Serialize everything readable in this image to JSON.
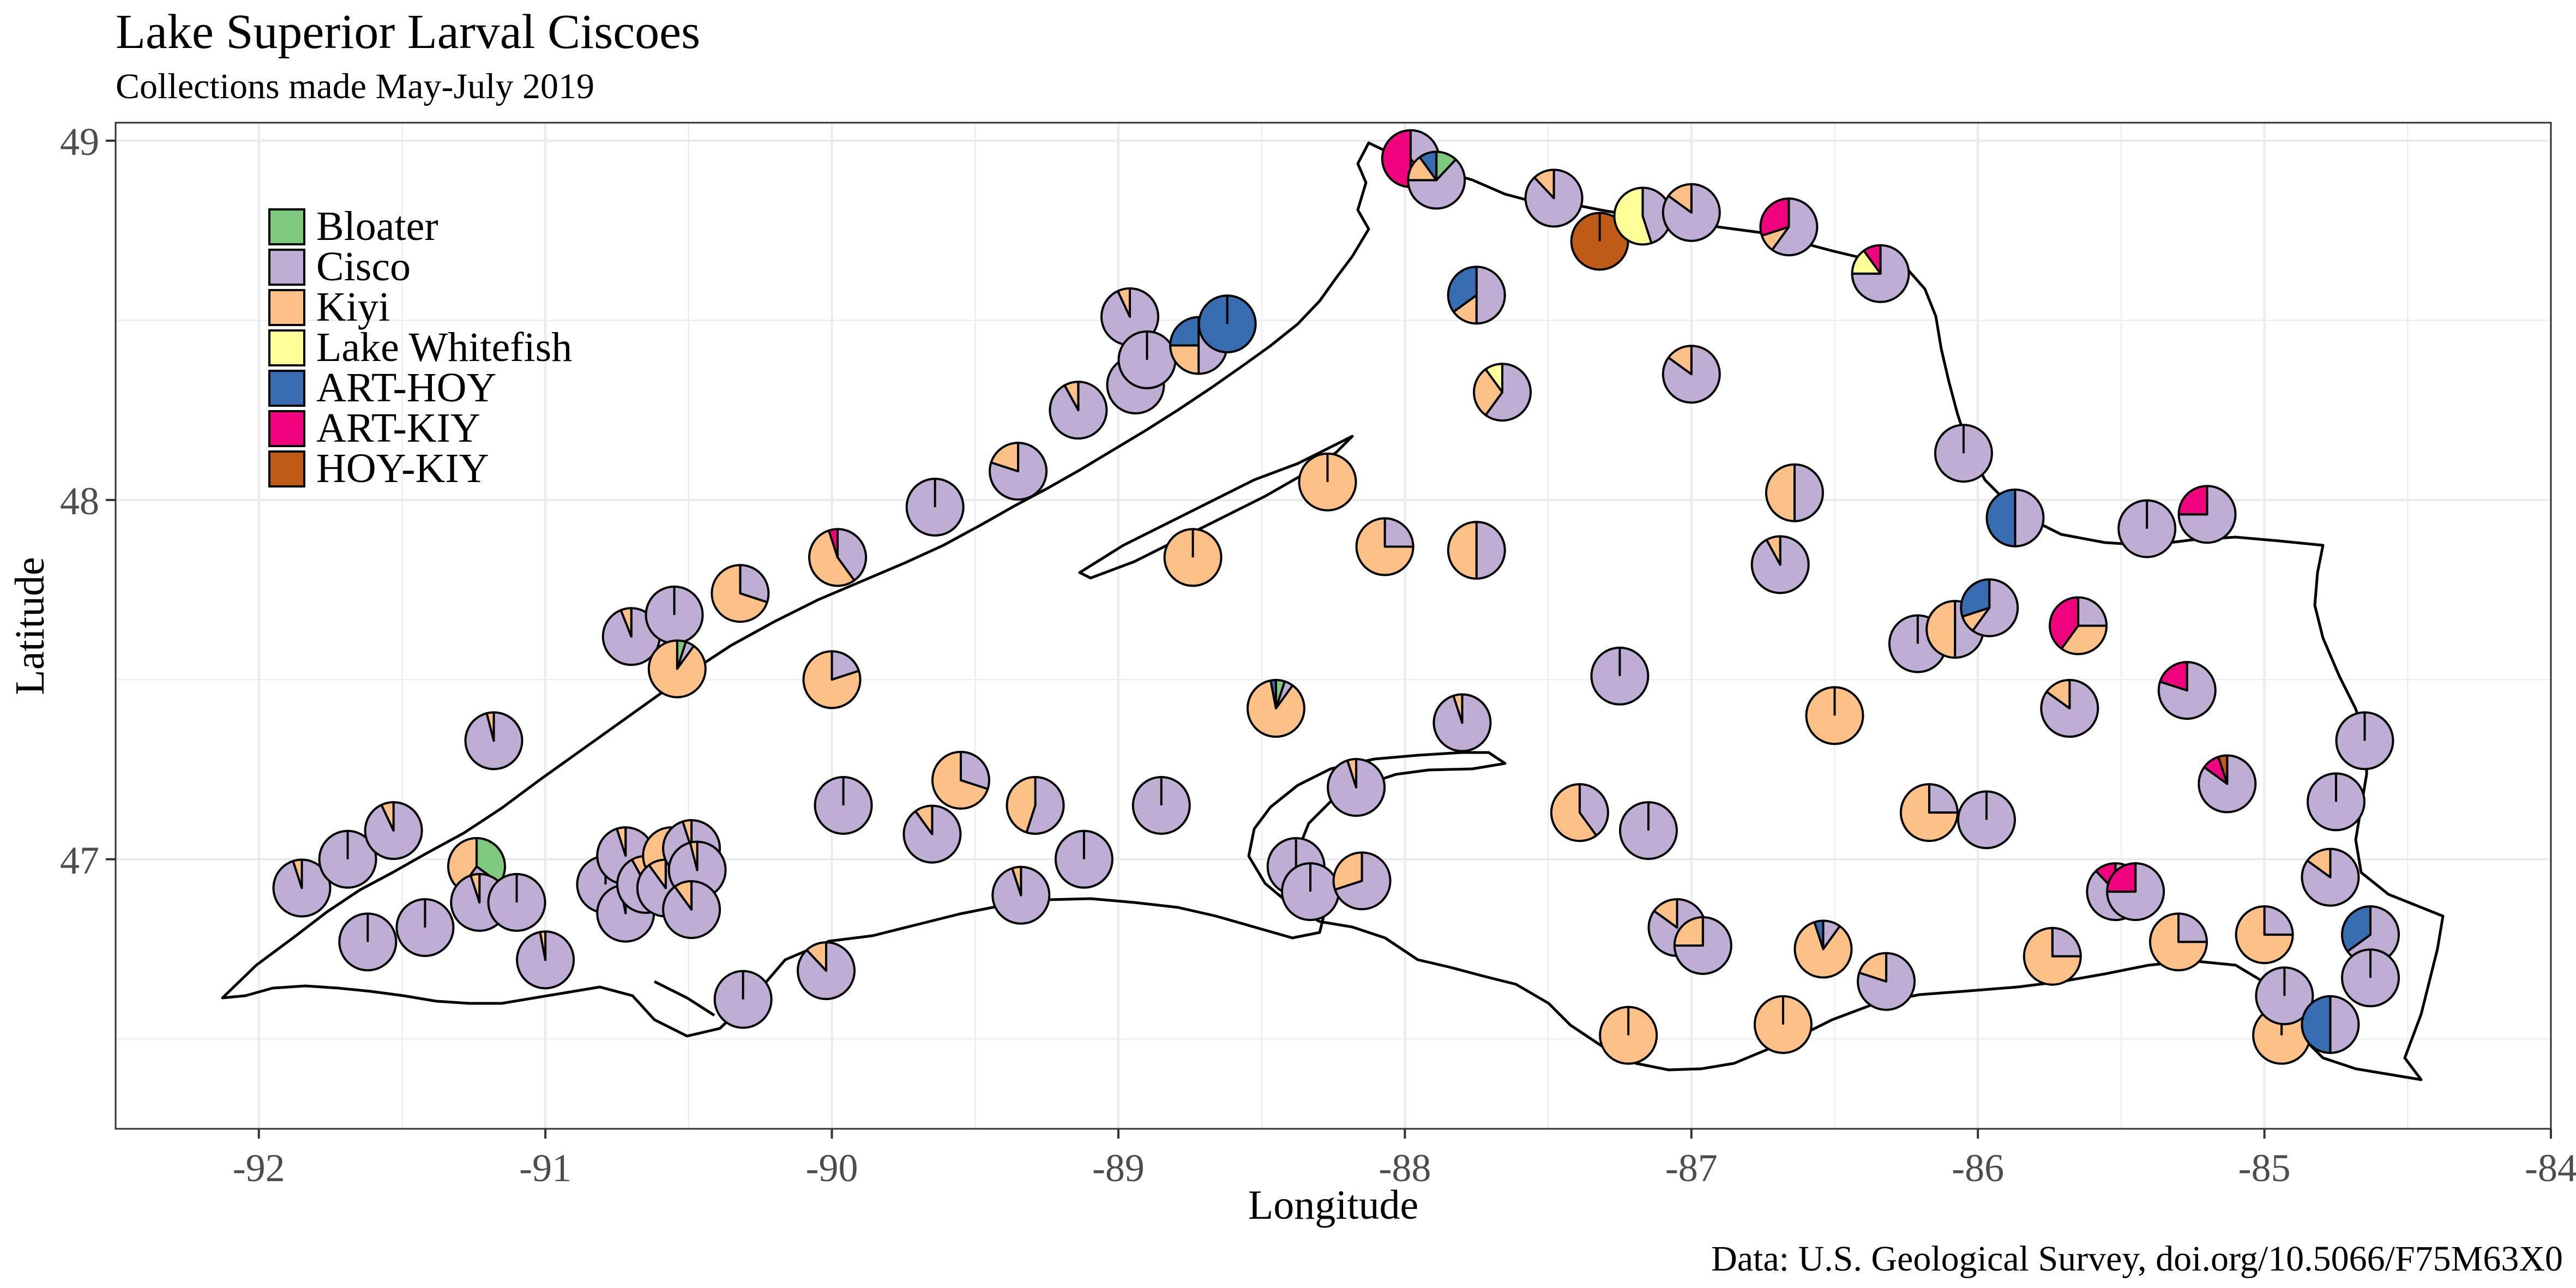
{
  "chart_data": {
    "type": "pie",
    "subtype": "scatter-pie map",
    "title": "Lake Superior Larval Ciscoes",
    "subtitle": "Collections made May-July 2019",
    "xlabel": "Longitude",
    "ylabel": "Latitude",
    "caption": "Data: U.S. Geological Survey, doi.org/10.5066/F75M63X0",
    "xlim": [
      -92.5,
      -84
    ],
    "ylim": [
      46.25,
      49.05
    ],
    "x_ticks": [
      -92,
      -91,
      -90,
      -89,
      -88,
      -87,
      -86,
      -85,
      -84
    ],
    "y_ticks": [
      47,
      48,
      49
    ],
    "grid": true,
    "legend_position": "top-left",
    "categories": [
      "Bloater",
      "Cisco",
      "Kiyi",
      "Lake Whitefish",
      "ART-HOY",
      "ART-KIY",
      "HOY-KIY"
    ],
    "colors": {
      "Bloater": "#7fc97f",
      "Cisco": "#beaed4",
      "Kiyi": "#fdc086",
      "Lake Whitefish": "#ffff99",
      "ART-HOY": "#386cb0",
      "ART-KIY": "#f0027f",
      "HOY-KIY": "#bf5b17"
    },
    "points": [
      {
        "lon": -91.0,
        "lat": 46.72,
        "values": {
          "Cisco": 0.97,
          "Kiyi": 0.03
        }
      },
      {
        "lon": -91.62,
        "lat": 46.77,
        "values": {
          "Cisco": 1.0
        }
      },
      {
        "lon": -91.42,
        "lat": 46.81,
        "values": {
          "Cisco": 1.0
        }
      },
      {
        "lon": -91.85,
        "lat": 46.92,
        "values": {
          "Cisco": 0.95,
          "Kiyi": 0.05
        }
      },
      {
        "lon": -91.69,
        "lat": 47.0,
        "values": {
          "Cisco": 1.0
        }
      },
      {
        "lon": -91.53,
        "lat": 47.08,
        "values": {
          "Cisco": 0.93,
          "Kiyi": 0.07
        }
      },
      {
        "lon": -91.24,
        "lat": 46.98,
        "values": {
          "Bloater": 0.35,
          "Cisco": 0.25,
          "Kiyi": 0.4
        }
      },
      {
        "lon": -91.23,
        "lat": 46.88,
        "values": {
          "Cisco": 0.95,
          "Kiyi": 0.05
        }
      },
      {
        "lon": -91.1,
        "lat": 46.88,
        "values": {
          "Cisco": 1.0
        }
      },
      {
        "lon": -91.18,
        "lat": 47.33,
        "values": {
          "Cisco": 0.96,
          "Kiyi": 0.04
        }
      },
      {
        "lon": -90.79,
        "lat": 46.93,
        "values": {
          "Cisco": 1.0
        }
      },
      {
        "lon": -90.72,
        "lat": 47.01,
        "values": {
          "Cisco": 0.95,
          "Kiyi": 0.05
        }
      },
      {
        "lon": -90.72,
        "lat": 46.85,
        "values": {
          "Cisco": 0.97,
          "Kiyi": 0.03
        }
      },
      {
        "lon": -90.65,
        "lat": 46.93,
        "values": {
          "Cisco": 0.92,
          "Kiyi": 0.08
        }
      },
      {
        "lon": -90.56,
        "lat": 47.01,
        "values": {
          "Kiyi": 1.0
        }
      },
      {
        "lon": -90.58,
        "lat": 46.92,
        "values": {
          "Cisco": 0.9,
          "Kiyi": 0.1
        }
      },
      {
        "lon": -90.49,
        "lat": 47.03,
        "values": {
          "Cisco": 0.95,
          "Kiyi": 0.05
        }
      },
      {
        "lon": -90.47,
        "lat": 46.97,
        "values": {
          "Cisco": 0.96,
          "Kiyi": 0.04
        }
      },
      {
        "lon": -90.49,
        "lat": 46.86,
        "values": {
          "Cisco": 0.9,
          "Kiyi": 0.1
        }
      },
      {
        "lon": -90.7,
        "lat": 47.62,
        "values": {
          "Cisco": 0.94,
          "Kiyi": 0.06
        }
      },
      {
        "lon": -90.55,
        "lat": 47.68,
        "values": {
          "Cisco": 1.0
        }
      },
      {
        "lon": -90.54,
        "lat": 47.53,
        "values": {
          "Bloater": 0.05,
          "Cisco": 0.05,
          "Kiyi": 0.9
        }
      },
      {
        "lon": -90.32,
        "lat": 47.74,
        "values": {
          "Kiyi": 0.7,
          "Cisco": 0.3
        }
      },
      {
        "lon": -90.31,
        "lat": 46.61,
        "values": {
          "Cisco": 1.0
        }
      },
      {
        "lon": -90.02,
        "lat": 46.69,
        "values": {
          "Cisco": 0.88,
          "Kiyi": 0.12
        }
      },
      {
        "lon": -89.98,
        "lat": 47.84,
        "values": {
          "ART-KIY": 0.05,
          "Cisco": 0.4,
          "Kiyi": 0.55
        }
      },
      {
        "lon": -90.0,
        "lat": 47.5,
        "values": {
          "Cisco": 0.2,
          "Kiyi": 0.8
        }
      },
      {
        "lon": -89.96,
        "lat": 47.15,
        "values": {
          "Cisco": 1.0
        }
      },
      {
        "lon": -89.64,
        "lat": 47.98,
        "values": {
          "Cisco": 1.0
        }
      },
      {
        "lon": -89.65,
        "lat": 47.07,
        "values": {
          "Cisco": 0.9,
          "Kiyi": 0.1
        }
      },
      {
        "lon": -89.55,
        "lat": 47.22,
        "values": {
          "Cisco": 0.3,
          "Kiyi": 0.7
        }
      },
      {
        "lon": -89.34,
        "lat": 46.9,
        "values": {
          "Cisco": 0.95,
          "Kiyi": 0.05
        }
      },
      {
        "lon": -89.29,
        "lat": 47.15,
        "values": {
          "Cisco": 0.55,
          "Kiyi": 0.45
        }
      },
      {
        "lon": -89.12,
        "lat": 47.0,
        "values": {
          "Cisco": 1.0
        }
      },
      {
        "lon": -89.35,
        "lat": 48.08,
        "values": {
          "Cisco": 0.8,
          "Kiyi": 0.2
        }
      },
      {
        "lon": -89.14,
        "lat": 48.25,
        "values": {
          "Cisco": 0.92,
          "Kiyi": 0.08
        }
      },
      {
        "lon": -88.96,
        "lat": 48.51,
        "values": {
          "Cisco": 0.93,
          "Kiyi": 0.07
        }
      },
      {
        "lon": -88.94,
        "lat": 48.32,
        "values": {
          "Cisco": 1.0
        }
      },
      {
        "lon": -88.9,
        "lat": 48.39,
        "values": {
          "Cisco": 1.0
        }
      },
      {
        "lon": -88.85,
        "lat": 47.15,
        "values": {
          "Cisco": 1.0
        }
      },
      {
        "lon": -88.72,
        "lat": 48.43,
        "values": {
          "ART-HOY": 0.25,
          "Cisco": 0.5,
          "Kiyi": 0.25
        }
      },
      {
        "lon": -88.62,
        "lat": 48.49,
        "values": {
          "ART-HOY": 1.0
        }
      },
      {
        "lon": -88.74,
        "lat": 47.84,
        "values": {
          "Kiyi": 1.0
        }
      },
      {
        "lon": -88.45,
        "lat": 47.42,
        "values": {
          "Bloater": 0.05,
          "Cisco": 0.05,
          "ART-HOY": 0.03,
          "Kiyi": 0.87
        }
      },
      {
        "lon": -88.38,
        "lat": 46.98,
        "values": {
          "Cisco": 1.0
        }
      },
      {
        "lon": -88.33,
        "lat": 46.91,
        "values": {
          "Cisco": 1.0
        }
      },
      {
        "lon": -88.27,
        "lat": 48.05,
        "values": {
          "Kiyi": 1.0
        }
      },
      {
        "lon": -88.17,
        "lat": 47.2,
        "values": {
          "Cisco": 0.95,
          "Kiyi": 0.05
        }
      },
      {
        "lon": -88.15,
        "lat": 46.94,
        "values": {
          "Cisco": 0.7,
          "Kiyi": 0.3
        }
      },
      {
        "lon": -88.07,
        "lat": 47.87,
        "values": {
          "Cisco": 0.25,
          "Kiyi": 0.75
        }
      },
      {
        "lon": -87.98,
        "lat": 48.95,
        "values": {
          "ART-KIY": 0.5,
          "Cisco": 0.4,
          "Kiyi": 0.1
        }
      },
      {
        "lon": -87.89,
        "lat": 48.89,
        "values": {
          "Bloater": 0.12,
          "ART-HOY": 0.1,
          "Cisco": 0.63,
          "Kiyi": 0.15
        }
      },
      {
        "lon": -87.8,
        "lat": 47.38,
        "values": {
          "Cisco": 0.95,
          "Kiyi": 0.05
        }
      },
      {
        "lon": -87.75,
        "lat": 48.57,
        "values": {
          "ART-HOY": 0.35,
          "Cisco": 0.5,
          "Kiyi": 0.15
        }
      },
      {
        "lon": -87.75,
        "lat": 47.86,
        "values": {
          "Cisco": 0.5,
          "Kiyi": 0.5
        }
      },
      {
        "lon": -87.66,
        "lat": 48.3,
        "values": {
          "Lake Whitefish": 0.1,
          "Cisco": 0.6,
          "Kiyi": 0.3
        }
      },
      {
        "lon": -87.48,
        "lat": 48.84,
        "values": {
          "Cisco": 0.88,
          "Kiyi": 0.12
        }
      },
      {
        "lon": -87.39,
        "lat": 47.13,
        "values": {
          "Cisco": 0.4,
          "Kiyi": 0.6
        }
      },
      {
        "lon": -87.32,
        "lat": 48.72,
        "values": {
          "HOY-KIY": 1.0
        }
      },
      {
        "lon": -87.25,
        "lat": 47.51,
        "values": {
          "Cisco": 1.0
        }
      },
      {
        "lon": -87.17,
        "lat": 48.79,
        "values": {
          "Lake Whitefish": 0.55,
          "Cisco": 0.45
        }
      },
      {
        "lon": -87.15,
        "lat": 47.08,
        "values": {
          "Cisco": 1.0
        }
      },
      {
        "lon": -87.05,
        "lat": 46.81,
        "values": {
          "Cisco": 0.85,
          "Kiyi": 0.15
        }
      },
      {
        "lon": -87.0,
        "lat": 48.8,
        "values": {
          "Cisco": 0.85,
          "Kiyi": 0.15
        }
      },
      {
        "lon": -87.0,
        "lat": 48.35,
        "values": {
          "Cisco": 0.85,
          "Kiyi": 0.15
        }
      },
      {
        "lon": -86.96,
        "lat": 46.76,
        "values": {
          "Cisco": 0.75,
          "Kiyi": 0.25
        }
      },
      {
        "lon": -87.22,
        "lat": 46.51,
        "values": {
          "Kiyi": 1.0
        }
      },
      {
        "lon": -86.68,
        "lat": 46.54,
        "values": {
          "Kiyi": 1.0
        }
      },
      {
        "lon": -86.66,
        "lat": 48.76,
        "values": {
          "ART-KIY": 0.3,
          "Cisco": 0.6,
          "Kiyi": 0.1
        }
      },
      {
        "lon": -86.64,
        "lat": 48.02,
        "values": {
          "Cisco": 0.5,
          "Kiyi": 0.5
        }
      },
      {
        "lon": -86.69,
        "lat": 47.82,
        "values": {
          "Cisco": 0.92,
          "Kiyi": 0.08
        }
      },
      {
        "lon": -86.5,
        "lat": 47.4,
        "values": {
          "Kiyi": 1.0
        }
      },
      {
        "lon": -86.54,
        "lat": 46.75,
        "values": {
          "ART-HOY": 0.05,
          "Cisco": 0.1,
          "Kiyi": 0.85
        }
      },
      {
        "lon": -86.34,
        "lat": 48.63,
        "values": {
          "ART-KIY": 0.1,
          "Lake Whitefish": 0.15,
          "Cisco": 0.75
        }
      },
      {
        "lon": -86.32,
        "lat": 46.66,
        "values": {
          "Cisco": 0.8,
          "Kiyi": 0.2
        }
      },
      {
        "lon": -86.21,
        "lat": 47.6,
        "values": {
          "Cisco": 1.0
        }
      },
      {
        "lon": -86.17,
        "lat": 47.13,
        "values": {
          "Cisco": 0.25,
          "Kiyi": 0.75
        }
      },
      {
        "lon": -86.08,
        "lat": 47.64,
        "values": {
          "Cisco": 0.5,
          "Kiyi": 0.5
        }
      },
      {
        "lon": -86.05,
        "lat": 48.13,
        "values": {
          "Cisco": 1.0
        }
      },
      {
        "lon": -85.96,
        "lat": 47.7,
        "values": {
          "ART-HOY": 0.3,
          "Cisco": 0.6,
          "Kiyi": 0.1
        }
      },
      {
        "lon": -85.97,
        "lat": 47.11,
        "values": {
          "Cisco": 1.0
        }
      },
      {
        "lon": -85.87,
        "lat": 47.95,
        "values": {
          "ART-HOY": 0.5,
          "Cisco": 0.5
        }
      },
      {
        "lon": -85.74,
        "lat": 46.73,
        "values": {
          "Cisco": 0.25,
          "Kiyi": 0.75
        }
      },
      {
        "lon": -85.65,
        "lat": 47.65,
        "values": {
          "ART-KIY": 0.4,
          "Cisco": 0.25,
          "Kiyi": 0.35
        }
      },
      {
        "lon": -85.68,
        "lat": 47.42,
        "values": {
          "Cisco": 0.85,
          "Kiyi": 0.15
        }
      },
      {
        "lon": -85.52,
        "lat": 46.91,
        "values": {
          "ART-KIY": 0.12,
          "Cisco": 0.88
        }
      },
      {
        "lon": -85.45,
        "lat": 46.91,
        "values": {
          "ART-KIY": 0.25,
          "Cisco": 0.75
        }
      },
      {
        "lon": -85.41,
        "lat": 47.92,
        "values": {
          "Cisco": 1.0
        }
      },
      {
        "lon": -85.3,
        "lat": 46.77,
        "values": {
          "Cisco": 0.25,
          "Kiyi": 0.75
        }
      },
      {
        "lon": -85.27,
        "lat": 47.47,
        "values": {
          "ART-KIY": 0.2,
          "Cisco": 0.8
        }
      },
      {
        "lon": -85.2,
        "lat": 47.96,
        "values": {
          "ART-KIY": 0.25,
          "Cisco": 0.75
        }
      },
      {
        "lon": -85.13,
        "lat": 47.21,
        "values": {
          "ART-KIY": 0.1,
          "HOY-KIY": 0.05,
          "Cisco": 0.85
        }
      },
      {
        "lon": -85.0,
        "lat": 46.79,
        "values": {
          "Cisco": 0.25,
          "Kiyi": 0.75
        }
      },
      {
        "lon": -84.94,
        "lat": 46.51,
        "values": {
          "Kiyi": 1.0
        }
      },
      {
        "lon": -84.93,
        "lat": 46.62,
        "values": {
          "Cisco": 1.0
        }
      },
      {
        "lon": -84.77,
        "lat": 46.54,
        "values": {
          "ART-HOY": 0.5,
          "Cisco": 0.5
        }
      },
      {
        "lon": -84.77,
        "lat": 46.95,
        "values": {
          "Cisco": 0.85,
          "Kiyi": 0.15
        }
      },
      {
        "lon": -84.75,
        "lat": 47.16,
        "values": {
          "Cisco": 1.0
        }
      },
      {
        "lon": -84.65,
        "lat": 47.33,
        "values": {
          "Cisco": 1.0
        }
      },
      {
        "lon": -84.63,
        "lat": 46.79,
        "values": {
          "ART-HOY": 0.35,
          "Cisco": 0.65
        }
      },
      {
        "lon": -84.63,
        "lat": 46.67,
        "values": {
          "Cisco": 1.0
        }
      }
    ]
  }
}
